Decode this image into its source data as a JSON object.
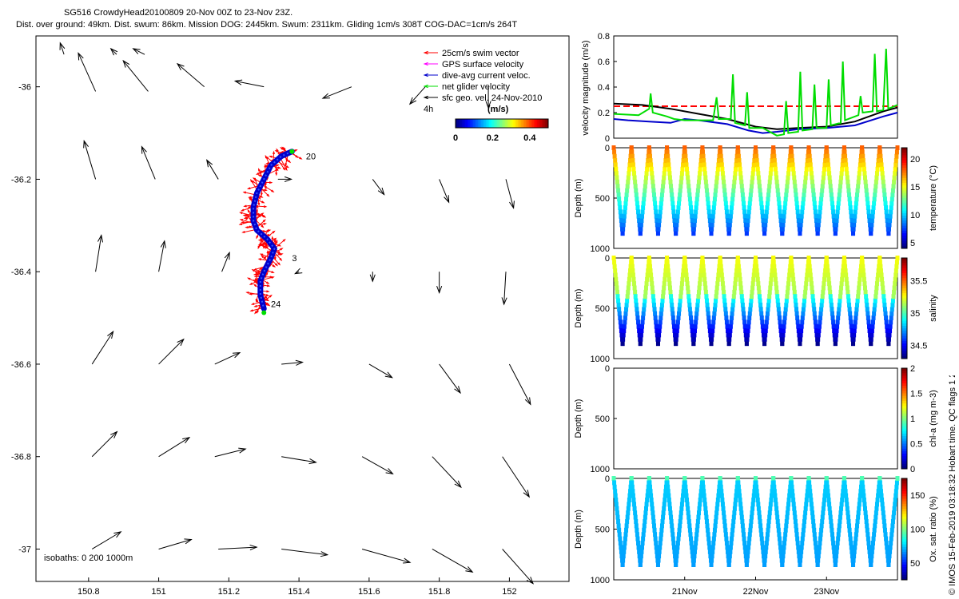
{
  "header": {
    "line1": "SG516 CrowdyHead20100809 20-Nov 00Z to 23-Nov 23Z.",
    "line2": "Dist. over ground: 49km. Dist. swum: 86km. Mission DOG: 2445km. Swum: 2311km. Gliding 1cm/s 308T COG-DAC=1cm/s 264T"
  },
  "credit": "© IMOS 15-Feb-2019 03:18:32 Hobart time. QC flags 1 2",
  "colors": {
    "swim": "#ff0000",
    "gps": "#ff00ff",
    "dac": "#0000cc",
    "net": "#00dd00",
    "geo": "#000000",
    "ref": "#ff0000"
  },
  "chart_data": [
    {
      "type": "scatter",
      "name": "map",
      "x_ticks": [
        "150.8",
        "151",
        "151.2",
        "151.4",
        "151.6",
        "151.8",
        "152"
      ],
      "y_ticks": [
        "-36",
        "-36.2",
        "-36.4",
        "-36.6",
        "-36.8",
        "-37"
      ],
      "xlim": [
        150.65,
        152.17
      ],
      "ylim": [
        -37.07,
        -35.89
      ],
      "isobaths": "isobaths: 0   200  1000m",
      "legend": [
        {
          "label": "25cm/s swim vector",
          "color": "#ff0000"
        },
        {
          "label": "GPS surface velocity",
          "color": "#ff00ff"
        },
        {
          "label": "dive-avg current veloc.",
          "color": "#0000cc"
        },
        {
          "label": "net glider velocity",
          "color": "#00dd00"
        },
        {
          "label": "sfc geo. vel. 24-Nov-2010",
          "color": "#000000"
        }
      ],
      "legend_extra": "4h",
      "colorbar": {
        "label": "(m/s)",
        "ticks": [
          "0",
          "0.2",
          "0.4"
        ],
        "range": [
          0,
          0.5
        ]
      },
      "track_labels": [
        {
          "text": "20",
          "lon": 151.42,
          "lat": -36.15
        },
        {
          "text": "3",
          "lon": 151.38,
          "lat": -36.37
        },
        {
          "text": "24",
          "lon": 151.32,
          "lat": -36.47
        }
      ],
      "track": [
        [
          151.38,
          -36.14
        ],
        [
          151.35,
          -36.15
        ],
        [
          151.32,
          -36.17
        ],
        [
          151.3,
          -36.2
        ],
        [
          151.28,
          -36.23
        ],
        [
          151.27,
          -36.26
        ],
        [
          151.27,
          -36.29
        ],
        [
          151.28,
          -36.31
        ],
        [
          151.31,
          -36.33
        ],
        [
          151.33,
          -36.35
        ],
        [
          151.32,
          -36.37
        ],
        [
          151.3,
          -36.4
        ],
        [
          151.29,
          -36.42
        ],
        [
          151.29,
          -36.45
        ],
        [
          151.3,
          -36.48
        ]
      ],
      "geo_vectors": [
        [
          150.73,
          -35.93,
          -0.02,
          0.06
        ],
        [
          150.88,
          -35.93,
          -0.03,
          0.03
        ],
        [
          150.96,
          -35.93,
          -0.06,
          0.03
        ],
        [
          150.82,
          -36.01,
          -0.09,
          0.2
        ],
        [
          150.97,
          -36.01,
          -0.13,
          0.16
        ],
        [
          151.13,
          -36.0,
          -0.14,
          0.12
        ],
        [
          151.3,
          -36.0,
          -0.15,
          0.03
        ],
        [
          151.55,
          -36.0,
          -0.15,
          -0.06
        ],
        [
          151.76,
          -36.0,
          -0.08,
          -0.09
        ],
        [
          151.94,
          -36.0,
          0.0,
          -0.11
        ],
        [
          150.82,
          -36.2,
          -0.06,
          0.2
        ],
        [
          150.99,
          -36.2,
          -0.07,
          0.17
        ],
        [
          151.17,
          -36.2,
          -0.06,
          0.1
        ],
        [
          151.34,
          -36.2,
          0.07,
          0.0
        ],
        [
          151.61,
          -36.2,
          0.06,
          -0.08
        ],
        [
          151.8,
          -36.2,
          0.05,
          -0.12
        ],
        [
          151.99,
          -36.2,
          0.04,
          -0.15
        ],
        [
          150.82,
          -36.4,
          0.03,
          0.19
        ],
        [
          151.0,
          -36.4,
          0.03,
          0.16
        ],
        [
          151.18,
          -36.4,
          0.04,
          0.1
        ],
        [
          151.4,
          -36.4,
          -0.02,
          -0.01
        ],
        [
          151.61,
          -36.4,
          0.0,
          -0.05
        ],
        [
          151.8,
          -36.4,
          0.0,
          -0.11
        ],
        [
          151.99,
          -36.4,
          -0.01,
          -0.17
        ],
        [
          150.81,
          -36.6,
          0.11,
          0.17
        ],
        [
          151.0,
          -36.6,
          0.13,
          0.13
        ],
        [
          151.16,
          -36.6,
          0.13,
          0.06
        ],
        [
          151.35,
          -36.6,
          0.11,
          0.01
        ],
        [
          151.6,
          -36.6,
          0.12,
          -0.07
        ],
        [
          151.8,
          -36.6,
          0.11,
          -0.15
        ],
        [
          152.0,
          -36.6,
          0.11,
          -0.21
        ],
        [
          150.81,
          -36.8,
          0.13,
          0.13
        ],
        [
          151.0,
          -36.8,
          0.16,
          0.1
        ],
        [
          151.16,
          -36.8,
          0.16,
          0.04
        ],
        [
          151.35,
          -36.8,
          0.18,
          -0.03
        ],
        [
          151.58,
          -36.8,
          0.16,
          -0.09
        ],
        [
          151.78,
          -36.8,
          0.15,
          -0.16
        ],
        [
          151.98,
          -36.8,
          0.14,
          -0.21
        ],
        [
          150.81,
          -37.0,
          0.15,
          0.09
        ],
        [
          151.0,
          -37.0,
          0.17,
          0.05
        ],
        [
          151.17,
          -37.0,
          0.2,
          0.01
        ],
        [
          151.35,
          -37.0,
          0.24,
          -0.03
        ],
        [
          151.58,
          -37.0,
          0.25,
          -0.07
        ],
        [
          151.78,
          -37.0,
          0.21,
          -0.12
        ],
        [
          151.98,
          -37.0,
          0.16,
          -0.18
        ]
      ]
    },
    {
      "type": "line",
      "name": "velocity",
      "ylabel": "velocity magnitude (m/s)",
      "y_ticks": [
        "0",
        "0.2",
        "0.4",
        "0.6",
        "0.8"
      ],
      "ylim": [
        0,
        0.8
      ],
      "xlim": [
        0,
        4
      ],
      "ref_value": 0.25,
      "series": [
        {
          "color": "#000000",
          "values": [
            [
              0,
              0.27
            ],
            [
              0.4,
              0.26
            ],
            [
              0.8,
              0.23
            ],
            [
              1.2,
              0.19
            ],
            [
              1.6,
              0.15
            ],
            [
              2.0,
              0.09
            ],
            [
              2.3,
              0.07
            ],
            [
              2.6,
              0.08
            ],
            [
              3.0,
              0.09
            ],
            [
              3.4,
              0.13
            ],
            [
              3.8,
              0.21
            ],
            [
              4.0,
              0.24
            ]
          ]
        },
        {
          "color": "#0000cc",
          "values": [
            [
              0,
              0.15
            ],
            [
              0.2,
              0.14
            ],
            [
              0.5,
              0.13
            ],
            [
              0.8,
              0.12
            ],
            [
              1.0,
              0.15
            ],
            [
              1.2,
              0.14
            ],
            [
              1.6,
              0.11
            ],
            [
              1.9,
              0.06
            ],
            [
              2.1,
              0.04
            ],
            [
              2.3,
              0.05
            ],
            [
              2.6,
              0.07
            ],
            [
              3.0,
              0.08
            ],
            [
              3.4,
              0.1
            ],
            [
              3.8,
              0.17
            ],
            [
              4.0,
              0.2
            ]
          ]
        },
        {
          "color": "#00dd00",
          "values": [
            [
              0,
              0.19
            ],
            [
              0.35,
              0.18
            ],
            [
              0.5,
              0.23
            ],
            [
              0.52,
              0.35
            ],
            [
              0.55,
              0.2
            ],
            [
              0.75,
              0.17
            ],
            [
              0.85,
              0.15
            ],
            [
              1.0,
              0.14
            ],
            [
              1.2,
              0.14
            ],
            [
              1.4,
              0.14
            ],
            [
              1.45,
              0.32
            ],
            [
              1.48,
              0.15
            ],
            [
              1.65,
              0.15
            ],
            [
              1.68,
              0.5
            ],
            [
              1.71,
              0.12
            ],
            [
              1.85,
              0.1
            ],
            [
              1.88,
              0.36
            ],
            [
              1.91,
              0.08
            ],
            [
              2.1,
              0.08
            ],
            [
              2.3,
              0.02
            ],
            [
              2.4,
              0.03
            ],
            [
              2.43,
              0.29
            ],
            [
              2.46,
              0.04
            ],
            [
              2.6,
              0.05
            ],
            [
              2.63,
              0.52
            ],
            [
              2.66,
              0.06
            ],
            [
              2.8,
              0.07
            ],
            [
              2.83,
              0.42
            ],
            [
              2.86,
              0.08
            ],
            [
              3.0,
              0.08
            ],
            [
              3.03,
              0.46
            ],
            [
              3.06,
              0.1
            ],
            [
              3.2,
              0.12
            ],
            [
              3.23,
              0.6
            ],
            [
              3.26,
              0.14
            ],
            [
              3.45,
              0.18
            ],
            [
              3.48,
              0.33
            ],
            [
              3.51,
              0.2
            ],
            [
              3.65,
              0.21
            ],
            [
              3.68,
              0.66
            ],
            [
              3.71,
              0.21
            ],
            [
              3.8,
              0.22
            ],
            [
              3.84,
              0.7
            ],
            [
              3.87,
              0.23
            ],
            [
              4.0,
              0.26
            ]
          ]
        }
      ]
    },
    {
      "type": "scatter",
      "name": "temperature",
      "ylabel": "Depth (m)",
      "y_ticks": [
        "0",
        "500",
        "1000"
      ],
      "ylim": [
        0,
        1000
      ],
      "colorbar": {
        "label": "temperature (°C)",
        "ticks": [
          "5",
          "10",
          "15",
          "20"
        ],
        "range": [
          4,
          22
        ]
      },
      "cycles": 16,
      "max_depth": 850
    },
    {
      "type": "scatter",
      "name": "salinity",
      "ylabel": "Depth (m)",
      "y_ticks": [
        "0",
        "500",
        "1000"
      ],
      "ylim": [
        0,
        1000
      ],
      "colorbar": {
        "label": "salinity",
        "ticks": [
          "34.5",
          "35",
          "35.5"
        ],
        "range": [
          34.3,
          35.85
        ]
      },
      "cycles": 16,
      "max_depth": 850
    },
    {
      "type": "scatter",
      "name": "chla",
      "ylabel": "Depth (m)",
      "y_ticks": [
        "0",
        "500",
        "1000"
      ],
      "ylim": [
        0,
        1000
      ],
      "colorbar": {
        "label": "chl-a (mg m-3)",
        "ticks": [
          "0",
          "0.5",
          "1",
          "1.5",
          "2"
        ],
        "range": [
          0,
          2
        ]
      }
    },
    {
      "type": "scatter",
      "name": "oxygen",
      "ylabel": "Depth (m)",
      "y_ticks": [
        "0",
        "500",
        "1000"
      ],
      "ylim": [
        0,
        1000
      ],
      "colorbar": {
        "label": "Ox. sat. ratio (%)",
        "ticks": [
          "50",
          "100",
          "150"
        ],
        "range": [
          25,
          175
        ]
      },
      "cycles": 16,
      "max_depth": 850,
      "x_ticks": [
        "21Nov",
        "22Nov",
        "23Nov"
      ]
    }
  ]
}
